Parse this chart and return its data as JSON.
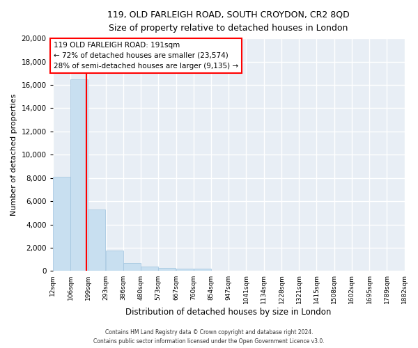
{
  "title_line1": "119, OLD FARLEIGH ROAD, SOUTH CROYDON, CR2 8QD",
  "title_line2": "Size of property relative to detached houses in London",
  "xlabel": "Distribution of detached houses by size in London",
  "ylabel": "Number of detached properties",
  "bar_color": "#c8dff0",
  "bar_edge_color": "#a0c4df",
  "annotation_line_color": "red",
  "annotation_text": "119 OLD FARLEIGH ROAD: 191sqm\n← 72% of detached houses are smaller (23,574)\n28% of semi-detached houses are larger (9,135) →",
  "property_size_sqm": 191,
  "bin_edges": [
    12,
    106,
    199,
    293,
    386,
    480,
    573,
    667,
    760,
    854,
    947,
    1041,
    1134,
    1228,
    1321,
    1415,
    1508,
    1602,
    1695,
    1789,
    1882
  ],
  "bin_labels": [
    "12sqm",
    "106sqm",
    "199sqm",
    "293sqm",
    "386sqm",
    "480sqm",
    "573sqm",
    "667sqm",
    "760sqm",
    "854sqm",
    "947sqm",
    "1041sqm",
    "1134sqm",
    "1228sqm",
    "1321sqm",
    "1415sqm",
    "1508sqm",
    "1602sqm",
    "1695sqm",
    "1789sqm",
    "1882sqm"
  ],
  "bar_heights": [
    8100,
    16500,
    5300,
    1750,
    700,
    380,
    290,
    200,
    200,
    0,
    0,
    0,
    0,
    0,
    0,
    0,
    0,
    0,
    0,
    0
  ],
  "ylim": [
    0,
    20000
  ],
  "yticks": [
    0,
    2000,
    4000,
    6000,
    8000,
    10000,
    12000,
    14000,
    16000,
    18000,
    20000
  ],
  "footer": "Contains HM Land Registry data © Crown copyright and database right 2024.\nContains public sector information licensed under the Open Government Licence v3.0.",
  "bg_color": "#ffffff",
  "plot_bg_color": "#e8eef5",
  "grid_color": "#ffffff"
}
